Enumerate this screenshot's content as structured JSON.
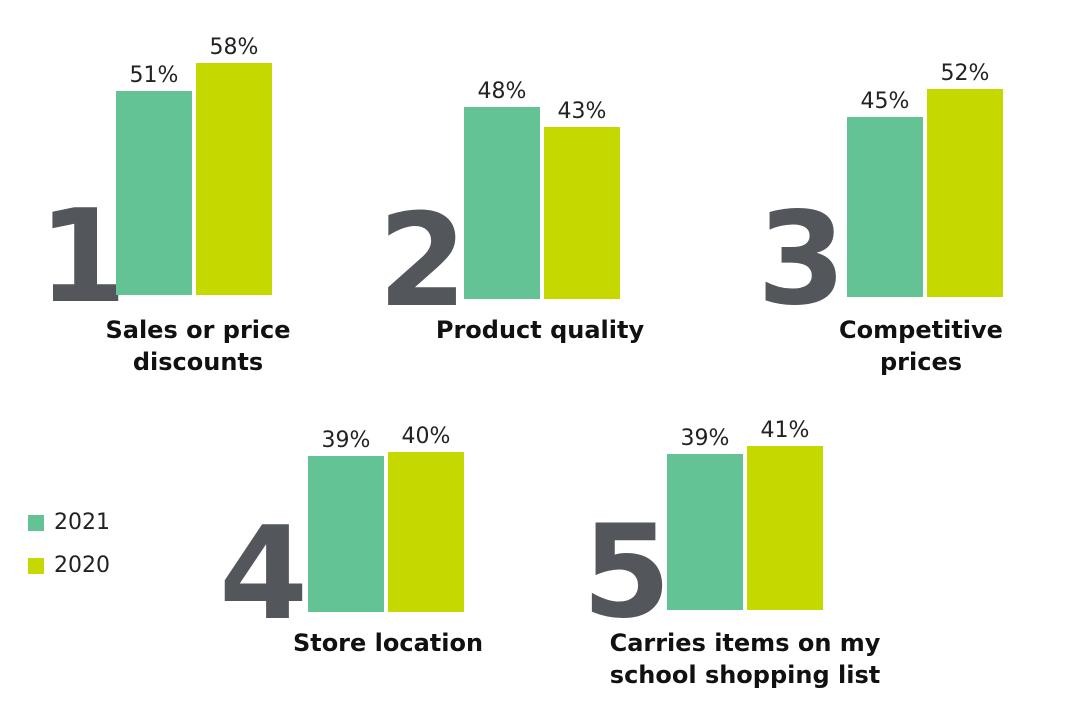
{
  "chart_data": {
    "type": "bar",
    "colors": {
      "2021": "#63c395",
      "2020": "#c5d800",
      "rank": "#53565a",
      "label": "#111111"
    },
    "groups": [
      {
        "rank": "1",
        "label_lines": [
          "Sales or price",
          "discounts"
        ],
        "values": [
          51,
          58
        ],
        "value_labels": [
          "51%",
          "58%"
        ]
      },
      {
        "rank": "2",
        "label_lines": [
          "Product quality"
        ],
        "values": [
          48,
          43
        ],
        "value_labels": [
          "48%",
          "43%"
        ]
      },
      {
        "rank": "3",
        "label_lines": [
          "Competitive",
          "prices"
        ],
        "values": [
          45,
          52
        ],
        "value_labels": [
          "45%",
          "52%"
        ]
      },
      {
        "rank": "4",
        "label_lines": [
          "Store location"
        ],
        "values": [
          39,
          40
        ],
        "value_labels": [
          "39%",
          "40%"
        ]
      },
      {
        "rank": "5",
        "label_lines": [
          "Carries items on my",
          "school shopping list"
        ],
        "values": [
          39,
          41
        ],
        "value_labels": [
          "39%",
          "41%"
        ]
      }
    ],
    "series": [
      {
        "name": "2021"
      },
      {
        "name": "2020"
      }
    ],
    "legend_position": "left"
  }
}
